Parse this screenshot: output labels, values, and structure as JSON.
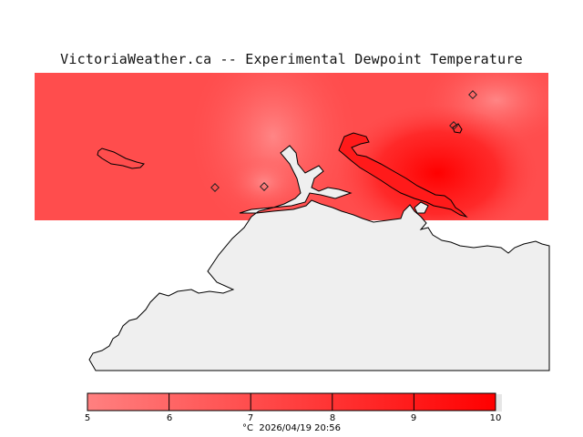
{
  "title": "VictoriaWeather.ca -- Experimental Dewpoint Temperature",
  "colorbar": {
    "min": 5,
    "max": 10,
    "ticks": [
      "5",
      "6",
      "7",
      "8",
      "9",
      "10"
    ],
    "color_low": "#ff8080",
    "color_high": "#ff0000"
  },
  "footer": {
    "unit": "°C",
    "timestamp": "2026/04/19 20:56"
  },
  "colors": {
    "field_base": "#ff5050",
    "field_hot": "#ff1010",
    "field_cool": "#ff7070",
    "land": "#efefef",
    "coast": "#000000"
  }
}
